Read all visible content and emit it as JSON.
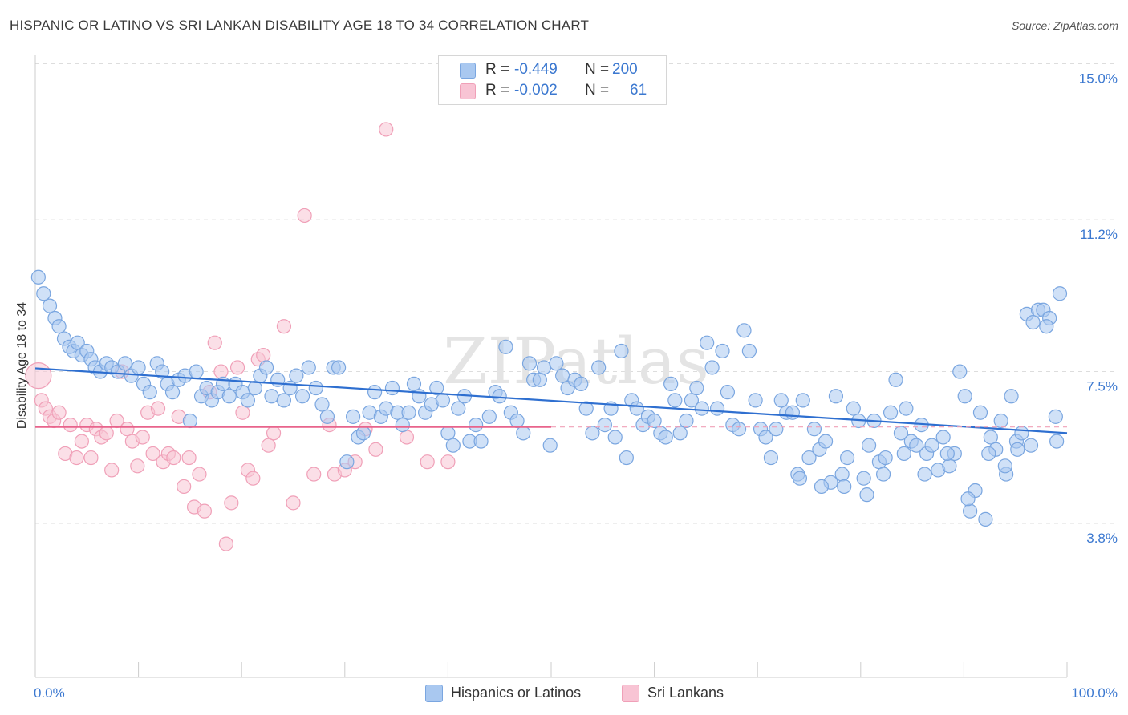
{
  "title": "HISPANIC OR LATINO VS SRI LANKAN DISABILITY AGE 18 TO 34 CORRELATION CHART",
  "source": "Source: ZipAtlas.com",
  "watermark": "ZIPatlas",
  "legend_top": {
    "rows": [
      {
        "r_label": "R =",
        "r_value": "-0.449",
        "n_label": "N =",
        "n_value": "200"
      },
      {
        "r_label": "R =",
        "r_value": "-0.002",
        "n_label": "N =",
        "n_value": "61"
      }
    ]
  },
  "legend_bottom": {
    "series1": "Hispanics or Latinos",
    "series2": "Sri Lankans"
  },
  "colors": {
    "blue_fill": "#a9c8f0",
    "blue_stroke": "#7aa6e0",
    "blue_line": "#2e6fd0",
    "pink_fill": "#f8c4d4",
    "pink_stroke": "#f0a0b8",
    "pink_line": "#e8648c",
    "tick_text": "#3b78d0",
    "grid": "#dddddd"
  },
  "chart_data": {
    "type": "scatter",
    "title": "HISPANIC OR LATINO VS SRI LANKAN DISABILITY AGE 18 TO 34 CORRELATION CHART",
    "xlabel": "",
    "ylabel": "Disability Age 18 to 34",
    "xlim": [
      0,
      100
    ],
    "ylim": [
      0,
      15.5
    ],
    "y_ticks": [
      3.8,
      7.5,
      11.2,
      15.0
    ],
    "y_tick_labels": [
      "3.8%",
      "7.5%",
      "11.2%",
      "15.0%"
    ],
    "x_tick_labels": [
      "0.0%",
      "100.0%"
    ],
    "grid": "horizontal dashed",
    "legend": "top-center",
    "series": [
      {
        "name": "Hispanics or Latinos",
        "R": -0.449,
        "N": 200,
        "trend": {
          "x": [
            0,
            100
          ],
          "y": [
            7.58,
            6.0
          ]
        },
        "points": [
          [
            0.3,
            9.8
          ],
          [
            0.8,
            9.4
          ],
          [
            1.4,
            9.1
          ],
          [
            1.9,
            8.8
          ],
          [
            2.3,
            8.6
          ],
          [
            2.8,
            8.3
          ],
          [
            3.3,
            8.1
          ],
          [
            3.7,
            8.0
          ],
          [
            4.1,
            8.2
          ],
          [
            4.5,
            7.9
          ],
          [
            5.0,
            8.0
          ],
          [
            5.4,
            7.8
          ],
          [
            5.8,
            7.6
          ],
          [
            6.3,
            7.5
          ],
          [
            6.9,
            7.7
          ],
          [
            7.4,
            7.6
          ],
          [
            8.0,
            7.5
          ],
          [
            8.7,
            7.7
          ],
          [
            9.3,
            7.4
          ],
          [
            10.0,
            7.6
          ],
          [
            10.5,
            7.2
          ],
          [
            11.1,
            7.0
          ],
          [
            11.8,
            7.7
          ],
          [
            12.3,
            7.5
          ],
          [
            12.8,
            7.2
          ],
          [
            13.3,
            7.0
          ],
          [
            13.9,
            7.3
          ],
          [
            14.5,
            7.4
          ],
          [
            15.0,
            6.3
          ],
          [
            15.6,
            7.5
          ],
          [
            16.1,
            6.9
          ],
          [
            16.6,
            7.1
          ],
          [
            17.1,
            6.8
          ],
          [
            17.7,
            7.0
          ],
          [
            18.2,
            7.2
          ],
          [
            18.8,
            6.9
          ],
          [
            19.4,
            7.2
          ],
          [
            20.1,
            7.0
          ],
          [
            20.6,
            6.8
          ],
          [
            21.3,
            7.1
          ],
          [
            21.8,
            7.4
          ],
          [
            22.4,
            7.6
          ],
          [
            22.9,
            6.9
          ],
          [
            23.5,
            7.3
          ],
          [
            24.1,
            6.8
          ],
          [
            24.7,
            7.1
          ],
          [
            25.3,
            7.4
          ],
          [
            25.9,
            6.9
          ],
          [
            26.5,
            7.6
          ],
          [
            27.2,
            7.1
          ],
          [
            27.8,
            6.7
          ],
          [
            28.3,
            6.4
          ],
          [
            28.9,
            7.6
          ],
          [
            29.4,
            7.6
          ],
          [
            30.2,
            5.3
          ],
          [
            30.8,
            6.4
          ],
          [
            31.3,
            5.9
          ],
          [
            31.8,
            6.0
          ],
          [
            32.4,
            6.5
          ],
          [
            32.9,
            7.0
          ],
          [
            33.5,
            6.4
          ],
          [
            34.0,
            6.6
          ],
          [
            34.6,
            7.1
          ],
          [
            35.1,
            6.5
          ],
          [
            35.6,
            6.2
          ],
          [
            36.2,
            6.5
          ],
          [
            36.7,
            7.2
          ],
          [
            37.2,
            6.9
          ],
          [
            37.8,
            6.5
          ],
          [
            38.4,
            6.7
          ],
          [
            38.9,
            7.1
          ],
          [
            39.5,
            6.8
          ],
          [
            40.0,
            6.0
          ],
          [
            40.5,
            5.7
          ],
          [
            41.0,
            6.6
          ],
          [
            41.6,
            6.9
          ],
          [
            42.1,
            5.8
          ],
          [
            42.7,
            6.2
          ],
          [
            43.2,
            5.8
          ],
          [
            44.0,
            6.4
          ],
          [
            44.6,
            7.0
          ],
          [
            45.0,
            6.9
          ],
          [
            45.6,
            8.1
          ],
          [
            46.1,
            6.5
          ],
          [
            46.7,
            6.3
          ],
          [
            47.3,
            6.0
          ],
          [
            47.9,
            7.7
          ],
          [
            48.3,
            7.3
          ],
          [
            48.9,
            7.3
          ],
          [
            49.3,
            7.6
          ],
          [
            49.9,
            5.7
          ],
          [
            50.5,
            7.7
          ],
          [
            51.1,
            7.4
          ],
          [
            51.6,
            7.1
          ],
          [
            52.3,
            7.3
          ],
          [
            52.9,
            7.2
          ],
          [
            53.4,
            6.6
          ],
          [
            54.0,
            6.0
          ],
          [
            54.6,
            7.6
          ],
          [
            55.2,
            6.2
          ],
          [
            55.8,
            6.6
          ],
          [
            56.2,
            5.9
          ],
          [
            56.8,
            8.0
          ],
          [
            57.3,
            5.4
          ],
          [
            57.8,
            6.8
          ],
          [
            58.3,
            6.6
          ],
          [
            58.9,
            6.2
          ],
          [
            59.4,
            6.4
          ],
          [
            60.0,
            6.3
          ],
          [
            60.6,
            6.0
          ],
          [
            61.1,
            5.9
          ],
          [
            61.6,
            7.2
          ],
          [
            62.0,
            6.8
          ],
          [
            62.5,
            6.0
          ],
          [
            63.1,
            6.3
          ],
          [
            63.6,
            6.8
          ],
          [
            64.1,
            7.1
          ],
          [
            64.6,
            6.6
          ],
          [
            65.1,
            8.2
          ],
          [
            65.6,
            7.6
          ],
          [
            66.1,
            6.6
          ],
          [
            66.6,
            8.0
          ],
          [
            67.1,
            7.0
          ],
          [
            67.6,
            6.2
          ],
          [
            68.2,
            6.1
          ],
          [
            68.7,
            8.5
          ],
          [
            69.2,
            8.0
          ],
          [
            69.8,
            6.8
          ],
          [
            70.3,
            6.1
          ],
          [
            70.8,
            5.9
          ],
          [
            71.3,
            5.4
          ],
          [
            71.8,
            6.1
          ],
          [
            72.3,
            6.8
          ],
          [
            72.8,
            6.5
          ],
          [
            73.4,
            6.5
          ],
          [
            73.9,
            5.0
          ],
          [
            74.4,
            6.8
          ],
          [
            75.0,
            5.4
          ],
          [
            75.5,
            6.1
          ],
          [
            76.0,
            5.6
          ],
          [
            76.6,
            5.8
          ],
          [
            77.1,
            4.8
          ],
          [
            77.6,
            6.9
          ],
          [
            78.2,
            5.0
          ],
          [
            78.7,
            5.4
          ],
          [
            79.3,
            6.6
          ],
          [
            79.8,
            6.3
          ],
          [
            80.3,
            4.9
          ],
          [
            80.8,
            5.7
          ],
          [
            81.3,
            6.3
          ],
          [
            81.8,
            5.3
          ],
          [
            82.4,
            5.4
          ],
          [
            82.9,
            6.5
          ],
          [
            83.4,
            7.3
          ],
          [
            83.9,
            6.0
          ],
          [
            84.4,
            6.6
          ],
          [
            84.9,
            5.8
          ],
          [
            85.4,
            5.7
          ],
          [
            85.9,
            6.2
          ],
          [
            86.4,
            5.5
          ],
          [
            86.9,
            5.7
          ],
          [
            87.5,
            5.1
          ],
          [
            88.0,
            5.9
          ],
          [
            88.6,
            5.2
          ],
          [
            89.1,
            5.5
          ],
          [
            89.6,
            7.5
          ],
          [
            90.1,
            6.9
          ],
          [
            90.6,
            4.1
          ],
          [
            91.1,
            4.6
          ],
          [
            91.6,
            6.5
          ],
          [
            92.1,
            3.9
          ],
          [
            92.6,
            5.9
          ],
          [
            93.1,
            5.6
          ],
          [
            93.6,
            6.3
          ],
          [
            94.1,
            5.0
          ],
          [
            94.6,
            6.9
          ],
          [
            95.1,
            5.8
          ],
          [
            95.6,
            6.0
          ],
          [
            96.1,
            8.9
          ],
          [
            96.7,
            8.7
          ],
          [
            97.2,
            9.0
          ],
          [
            97.7,
            9.0
          ],
          [
            98.3,
            8.8
          ],
          [
            98.9,
            6.4
          ],
          [
            99.3,
            9.4
          ],
          [
            98.0,
            8.6
          ],
          [
            99.0,
            5.8
          ],
          [
            96.5,
            5.7
          ],
          [
            95.2,
            5.6
          ],
          [
            94.0,
            5.2
          ],
          [
            92.4,
            5.5
          ],
          [
            90.4,
            4.4
          ],
          [
            88.4,
            5.5
          ],
          [
            86.2,
            5.0
          ],
          [
            84.2,
            5.5
          ],
          [
            82.2,
            5.0
          ],
          [
            80.6,
            4.5
          ],
          [
            78.4,
            4.7
          ],
          [
            76.2,
            4.7
          ],
          [
            74.1,
            4.9
          ]
        ]
      },
      {
        "name": "Sri Lankans",
        "R": -0.002,
        "N": 61,
        "trend": {
          "x": [
            0,
            50
          ],
          "y": [
            6.15,
            6.15
          ]
        },
        "trend_dashed": {
          "x": [
            50,
            100
          ],
          "y": [
            6.15,
            6.15
          ]
        },
        "points": [
          [
            0.3,
            7.4
          ],
          [
            0.6,
            6.8
          ],
          [
            1.0,
            6.6
          ],
          [
            1.4,
            6.4
          ],
          [
            1.8,
            6.3
          ],
          [
            2.3,
            6.5
          ],
          [
            2.9,
            5.5
          ],
          [
            3.4,
            6.2
          ],
          [
            4.0,
            5.4
          ],
          [
            4.5,
            5.8
          ],
          [
            5.0,
            6.2
          ],
          [
            5.4,
            5.4
          ],
          [
            5.9,
            6.1
          ],
          [
            6.4,
            5.9
          ],
          [
            6.9,
            6.0
          ],
          [
            7.4,
            5.1
          ],
          [
            7.9,
            6.3
          ],
          [
            8.4,
            7.5
          ],
          [
            8.9,
            6.1
          ],
          [
            9.4,
            5.8
          ],
          [
            9.9,
            5.2
          ],
          [
            10.4,
            5.9
          ],
          [
            10.9,
            6.5
          ],
          [
            11.4,
            5.5
          ],
          [
            11.9,
            6.6
          ],
          [
            12.4,
            5.3
          ],
          [
            12.9,
            5.5
          ],
          [
            13.4,
            5.4
          ],
          [
            13.9,
            6.4
          ],
          [
            14.4,
            4.7
          ],
          [
            14.9,
            5.4
          ],
          [
            15.4,
            4.2
          ],
          [
            15.9,
            5.0
          ],
          [
            16.4,
            4.1
          ],
          [
            16.9,
            7.0
          ],
          [
            17.4,
            8.2
          ],
          [
            18.0,
            7.5
          ],
          [
            18.5,
            3.3
          ],
          [
            19.0,
            4.3
          ],
          [
            19.6,
            7.6
          ],
          [
            20.1,
            6.5
          ],
          [
            20.6,
            5.1
          ],
          [
            21.1,
            4.9
          ],
          [
            21.6,
            7.8
          ],
          [
            22.1,
            7.9
          ],
          [
            22.6,
            5.7
          ],
          [
            23.1,
            6.0
          ],
          [
            24.1,
            8.6
          ],
          [
            25.0,
            4.3
          ],
          [
            26.1,
            11.3
          ],
          [
            27.0,
            5.0
          ],
          [
            28.5,
            6.2
          ],
          [
            29.0,
            5.0
          ],
          [
            30.0,
            5.1
          ],
          [
            31.0,
            5.3
          ],
          [
            32.0,
            6.1
          ],
          [
            33.0,
            5.6
          ],
          [
            34.0,
            13.4
          ],
          [
            36.0,
            5.9
          ],
          [
            38.0,
            5.3
          ],
          [
            40.0,
            5.3
          ]
        ]
      }
    ]
  }
}
